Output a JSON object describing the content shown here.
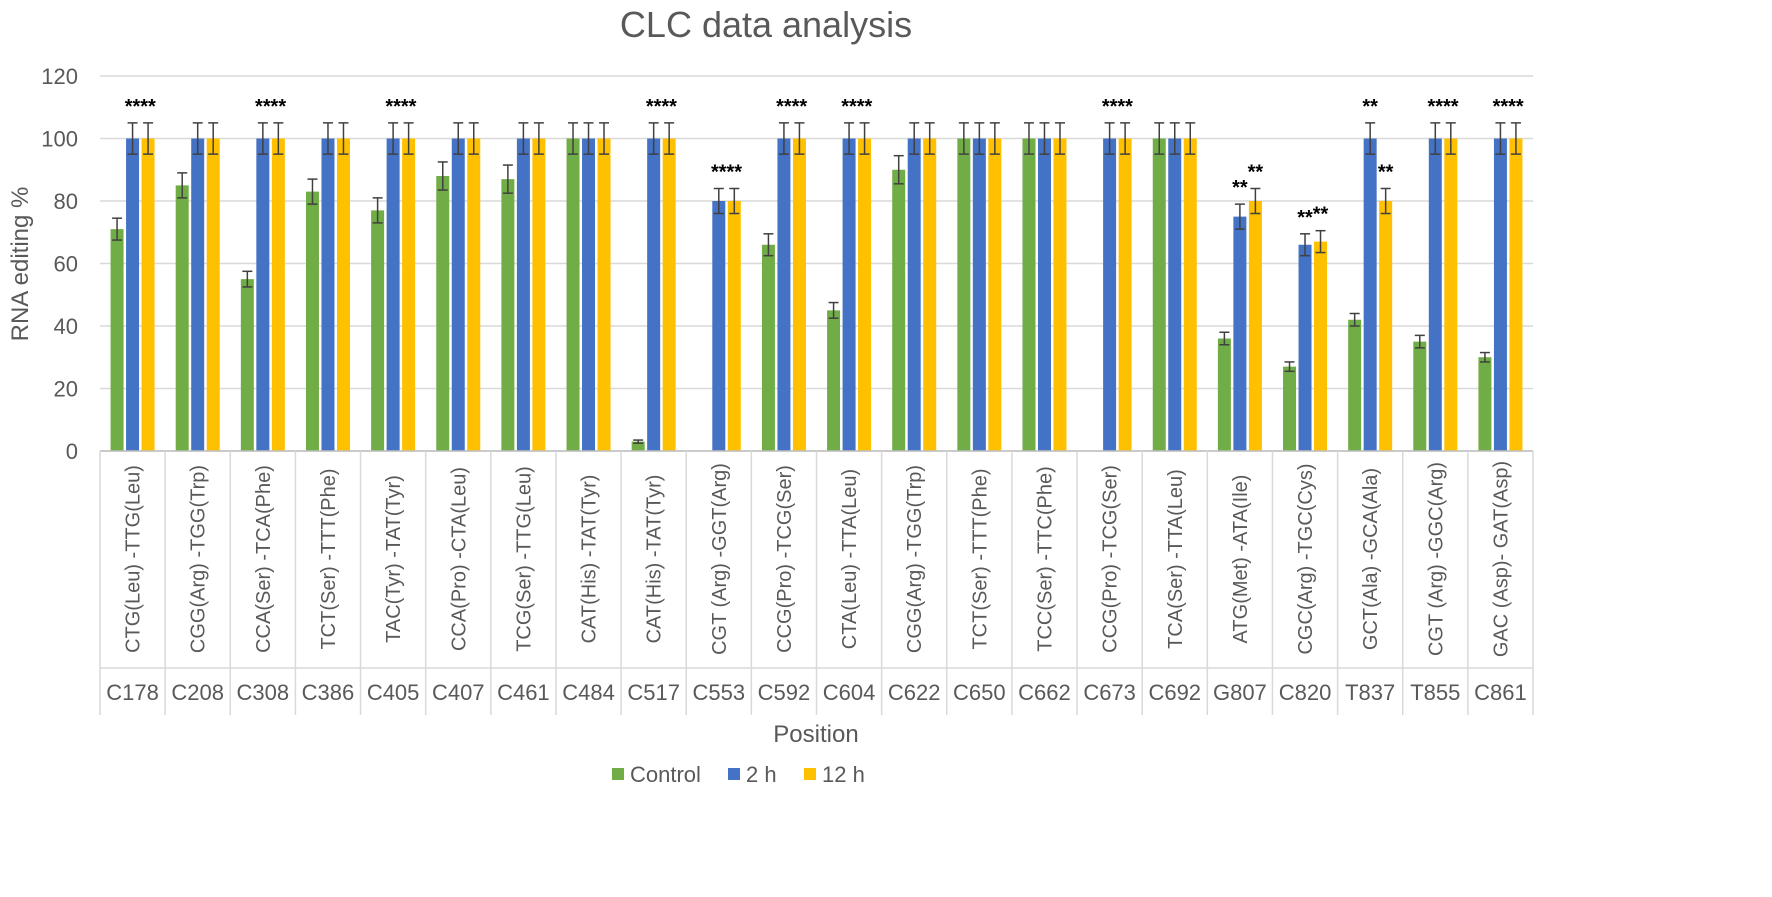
{
  "chart_data": {
    "type": "bar",
    "title": "CLC data analysis",
    "xlabel": "Position",
    "ylabel": "RNA editing %",
    "ylim": [
      0,
      120
    ],
    "yticks": [
      "0",
      "20",
      "40",
      "60",
      "80",
      "100",
      "120"
    ],
    "grid": true,
    "legend_position": "bottom",
    "categories": [
      {
        "position": "C178",
        "codon": "CTG(Leu) -TTG(Leu)"
      },
      {
        "position": "C208",
        "codon": "CGG(Arg) -TGG(Trp)"
      },
      {
        "position": "C308",
        "codon": "CCA(Ser) -TCA(Phe)"
      },
      {
        "position": "C386",
        "codon": "TCT(Ser) -TTT(Phe)"
      },
      {
        "position": "C405",
        "codon": "TAC(Tyr) -TAT(Tyr)"
      },
      {
        "position": "C407",
        "codon": "CCA(Pro) -CTA(Leu)"
      },
      {
        "position": "C461",
        "codon": "TCG(Ser) -TTG(Leu)"
      },
      {
        "position": "C484",
        "codon": "CAT(His) -TAT(Tyr)"
      },
      {
        "position": "C517",
        "codon": "CAT(His) -TAT(Tyr)"
      },
      {
        "position": "C553",
        "codon": "CGT (Arg) -GGT(Arg)"
      },
      {
        "position": "C592",
        "codon": "CCG(Pro) -TCG(Ser)"
      },
      {
        "position": "C604",
        "codon": "CTA(Leu) -TTA(Leu)"
      },
      {
        "position": "C622",
        "codon": "CGG(Arg) -TGG(Trp)"
      },
      {
        "position": "C650",
        "codon": "TCT(Ser) -TTT(Phe)"
      },
      {
        "position": "C662",
        "codon": "TCC(Ser) -TTC(Phe)"
      },
      {
        "position": "C673",
        "codon": "CCG(Pro) -TCG(Ser)"
      },
      {
        "position": "C692",
        "codon": "TCA(Ser) -TTA(Leu)"
      },
      {
        "position": "G807",
        "codon": "ATG(Met) -ATA(Ile)"
      },
      {
        "position": "C820",
        "codon": "CGC(Arg) -TGC(Cys)"
      },
      {
        "position": "T837",
        "codon": "GCT(Ala) -GCA(Ala)"
      },
      {
        "position": "T855",
        "codon": "CGT (Arg) -GGC(Arg)"
      },
      {
        "position": "C861",
        "codon": "GAC (Asp)- GAT(Asp)"
      }
    ],
    "series": [
      {
        "name": "Control",
        "color": "#70ad47",
        "values": [
          71,
          85,
          55,
          83,
          77,
          88,
          87,
          100,
          3,
          0,
          66,
          45,
          90,
          100,
          100,
          0,
          100,
          36,
          27,
          42,
          35,
          30
        ],
        "errors": [
          3.5,
          4,
          2.5,
          4,
          4,
          4.5,
          4.5,
          5,
          0.5,
          0,
          3.5,
          2.5,
          4.5,
          5,
          5,
          0,
          5,
          2,
          1.5,
          2,
          2,
          1.5
        ]
      },
      {
        "name": "2 h",
        "color": "#4472c4",
        "values": [
          100,
          100,
          100,
          100,
          100,
          100,
          100,
          100,
          100,
          80,
          100,
          100,
          100,
          100,
          100,
          100,
          100,
          75,
          66,
          100,
          100,
          100
        ],
        "errors": [
          5,
          5,
          5,
          5,
          5,
          5,
          5,
          5,
          5,
          4,
          5,
          5,
          5,
          5,
          5,
          5,
          5,
          4,
          3.5,
          5,
          5,
          5
        ]
      },
      {
        "name": "12 h",
        "color": "#ffc000",
        "values": [
          100,
          100,
          100,
          100,
          100,
          100,
          100,
          100,
          100,
          80,
          100,
          100,
          100,
          100,
          100,
          100,
          100,
          80,
          67,
          80,
          100,
          100
        ],
        "errors": [
          5,
          5,
          5,
          5,
          5,
          5,
          5,
          5,
          5,
          4,
          5,
          5,
          5,
          5,
          5,
          5,
          5,
          4,
          3.5,
          4,
          5,
          5
        ]
      }
    ],
    "annotations": [
      {
        "category": 0,
        "series": 1,
        "text": "**"
      },
      {
        "category": 0,
        "series": 2,
        "text": "**"
      },
      {
        "category": 2,
        "series": 1,
        "text": "**"
      },
      {
        "category": 2,
        "series": 2,
        "text": "**"
      },
      {
        "category": 4,
        "series": 1,
        "text": "**"
      },
      {
        "category": 4,
        "series": 2,
        "text": "**"
      },
      {
        "category": 8,
        "series": 1,
        "text": "**"
      },
      {
        "category": 8,
        "series": 2,
        "text": "**"
      },
      {
        "category": 9,
        "series": 1,
        "text": "**"
      },
      {
        "category": 9,
        "series": 2,
        "text": "**"
      },
      {
        "category": 10,
        "series": 1,
        "text": "**"
      },
      {
        "category": 10,
        "series": 2,
        "text": "**"
      },
      {
        "category": 11,
        "series": 1,
        "text": "**"
      },
      {
        "category": 11,
        "series": 2,
        "text": "**"
      },
      {
        "category": 15,
        "series": 1,
        "text": "**"
      },
      {
        "category": 15,
        "series": 2,
        "text": "**"
      },
      {
        "category": 17,
        "series": 1,
        "text": "**"
      },
      {
        "category": 17,
        "series": 2,
        "text": "**"
      },
      {
        "category": 18,
        "series": 1,
        "text": "**"
      },
      {
        "category": 18,
        "series": 2,
        "text": "**"
      },
      {
        "category": 19,
        "series": 1,
        "text": "**"
      },
      {
        "category": 19,
        "series": 2,
        "text": "**"
      },
      {
        "category": 20,
        "series": 1,
        "text": "**"
      },
      {
        "category": 20,
        "series": 2,
        "text": "**"
      },
      {
        "category": 21,
        "series": 1,
        "text": "**"
      },
      {
        "category": 21,
        "series": 2,
        "text": "**"
      }
    ]
  }
}
